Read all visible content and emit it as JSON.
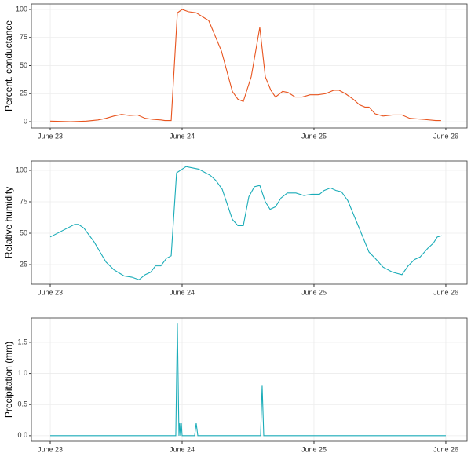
{
  "chart_data": [
    {
      "type": "line",
      "ylabel": "Percent. conductance",
      "color": "#e8541e",
      "grid": true,
      "xlim": [
        -0.143,
        3.161
      ],
      "xticks": [
        {
          "value": 0,
          "label": "June 23"
        },
        {
          "value": 1,
          "label": "June 24"
        },
        {
          "value": 2,
          "label": "June 25"
        },
        {
          "value": 3,
          "label": "June 26"
        }
      ],
      "ylim": [
        -5.6,
        104.9
      ],
      "yticks": [
        0,
        25,
        50,
        75,
        100
      ],
      "x": [
        0,
        0.155,
        0.274,
        0.363,
        0.423,
        0.482,
        0.542,
        0.601,
        0.661,
        0.72,
        0.78,
        0.839,
        0.869,
        0.917,
        0.964,
        1.0,
        1.048,
        1.107,
        1.202,
        1.298,
        1.381,
        1.423,
        1.464,
        1.524,
        1.589,
        1.631,
        1.673,
        1.708,
        1.762,
        1.804,
        1.857,
        1.911,
        1.97,
        2.03,
        2.089,
        2.149,
        2.19,
        2.238,
        2.298,
        2.345,
        2.387,
        2.417,
        2.464,
        2.524,
        2.595,
        2.667,
        2.726,
        2.833,
        2.923,
        2.964
      ],
      "values": [
        0.5,
        0,
        0.5,
        1.5,
        3,
        5,
        6.5,
        5.5,
        6,
        3,
        2,
        1.5,
        1,
        1,
        97,
        100,
        98,
        97,
        90,
        63,
        27,
        20,
        18,
        40,
        84,
        40,
        28,
        22,
        27,
        26,
        22,
        22,
        24,
        24,
        25,
        28,
        28,
        25,
        20,
        15,
        13,
        13,
        7,
        5,
        6,
        6,
        3,
        2,
        1,
        1
      ]
    },
    {
      "type": "line",
      "ylabel": "Relative humidity",
      "color": "#1aacb8",
      "grid": true,
      "xlim": [
        -0.143,
        3.161
      ],
      "xticks": [
        {
          "value": 0,
          "label": "June 23"
        },
        {
          "value": 1,
          "label": "June 24"
        },
        {
          "value": 2,
          "label": "June 25"
        },
        {
          "value": 3,
          "label": "June 26"
        }
      ],
      "ylim": [
        9.4,
        107.5
      ],
      "yticks": [
        25,
        50,
        75,
        100
      ],
      "x": [
        0,
        0.185,
        0.214,
        0.256,
        0.333,
        0.423,
        0.482,
        0.512,
        0.56,
        0.619,
        0.673,
        0.72,
        0.762,
        0.798,
        0.839,
        0.881,
        0.917,
        0.958,
        1.03,
        1.125,
        1.214,
        1.256,
        1.304,
        1.381,
        1.423,
        1.464,
        1.506,
        1.548,
        1.589,
        1.631,
        1.667,
        1.708,
        1.75,
        1.798,
        1.863,
        1.923,
        1.982,
        2.042,
        2.077,
        2.125,
        2.167,
        2.208,
        2.256,
        2.339,
        2.417,
        2.464,
        2.524,
        2.595,
        2.667,
        2.714,
        2.762,
        2.804,
        2.863,
        2.905,
        2.935,
        2.97
      ],
      "values": [
        47,
        57,
        57,
        54,
        43,
        27,
        21,
        19,
        16,
        15,
        13,
        17,
        19,
        24,
        24,
        30,
        32,
        98,
        103,
        101,
        96,
        92,
        85,
        61,
        56,
        56,
        79,
        87,
        88,
        75,
        69,
        71,
        78,
        82,
        82,
        80,
        81,
        81,
        84,
        86,
        84,
        83,
        76,
        55,
        35,
        30,
        23,
        19,
        17,
        24,
        29,
        31,
        38,
        42,
        47,
        48
      ]
    },
    {
      "type": "line",
      "ylabel": "Precipitation (mm)",
      "color": "#1aacb8",
      "grid": true,
      "xlim": [
        -0.143,
        3.161
      ],
      "xticks": [
        {
          "value": 0,
          "label": "June 23"
        },
        {
          "value": 1,
          "label": "June 24"
        },
        {
          "value": 2,
          "label": "June 25"
        },
        {
          "value": 3,
          "label": "June 26"
        }
      ],
      "ylim": [
        -0.09,
        1.89
      ],
      "yticks": [
        {
          "value": 0,
          "label": "0.0"
        },
        0.5,
        {
          "value": 1,
          "label": "1.0"
        },
        1.5
      ],
      "x": [
        0,
        0.952,
        0.964,
        0.976,
        0.982,
        0.988,
        0.994,
        1.0,
        1.095,
        1.107,
        1.119,
        1.595,
        1.607,
        1.619,
        3.0
      ],
      "values": [
        0,
        0,
        1.8,
        0,
        0.2,
        0,
        0.2,
        0,
        0,
        0.2,
        0,
        0,
        0.8,
        0,
        0
      ]
    }
  ]
}
